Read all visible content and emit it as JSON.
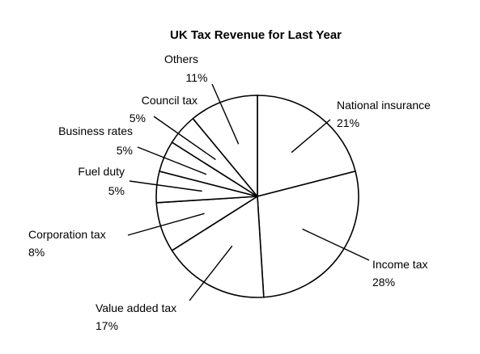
{
  "chart_data": {
    "type": "pie",
    "title": "UK Tax Revenue for Last Year",
    "slices": [
      {
        "label": "National insurance",
        "value": 21,
        "value_label": "21%"
      },
      {
        "label": "Income tax",
        "value": 28,
        "value_label": "28%"
      },
      {
        "label": "Value added tax",
        "value": 17,
        "value_label": "17%"
      },
      {
        "label": "Corporation tax",
        "value": 8,
        "value_label": "8%"
      },
      {
        "label": "Fuel duty",
        "value": 5,
        "value_label": "5%"
      },
      {
        "label": "Business rates",
        "value": 5,
        "value_label": "5%"
      },
      {
        "label": "Council tax",
        "value": 5,
        "value_label": "5%"
      },
      {
        "label": "Others",
        "value": 11,
        "value_label": "11%"
      }
    ],
    "start_angle": "top (12 o'clock)",
    "direction": "clockwise"
  },
  "colors": {
    "fill": "#ffffff",
    "stroke": "#000000",
    "text": "#000000"
  }
}
